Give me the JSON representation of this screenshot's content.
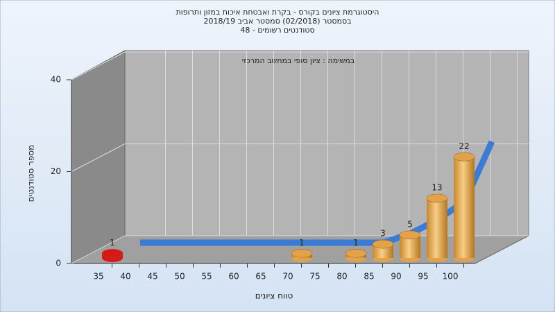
{
  "chart_data": {
    "type": "bar3d",
    "title_lines": [
      "היסטוגרמת ציונים בקורס - בקרת ואבטחת איכות במזון ותרופות",
      "בסמסטר (02/2018) סמסטר אביב 2018/19",
      "סטודנטים רשומים - 48"
    ],
    "subtitle": "במשימה : ציון סופי במחשב המרכזי",
    "x_label": "טווח ציונים",
    "y_label": "מספר סטודנטים",
    "categories": [
      "35",
      "40",
      "45",
      "50",
      "55",
      "60",
      "65",
      "70",
      "75",
      "80",
      "85",
      "90",
      "95",
      "100"
    ],
    "values": [
      1,
      0,
      0,
      0,
      0,
      0,
      0,
      1,
      0,
      1,
      3,
      5,
      13,
      22
    ],
    "colors": [
      "#d81818",
      "#e3a24a",
      "#e3a24a",
      "#e3a24a",
      "#e3a24a",
      "#e3a24a",
      "#e3a24a",
      "#e3a24a",
      "#e3a24a",
      "#e3a24a",
      "#e3a24a",
      "#e3a24a",
      "#e3a24a",
      "#e3a24a"
    ],
    "line_values": [
      0,
      0,
      0,
      0,
      0,
      0,
      0,
      0,
      0,
      0,
      2,
      5,
      9,
      22
    ],
    "line_color": "#3a7bd5",
    "ylim": [
      0,
      40
    ],
    "yticks": [
      0,
      20,
      40
    ],
    "grid": true
  }
}
